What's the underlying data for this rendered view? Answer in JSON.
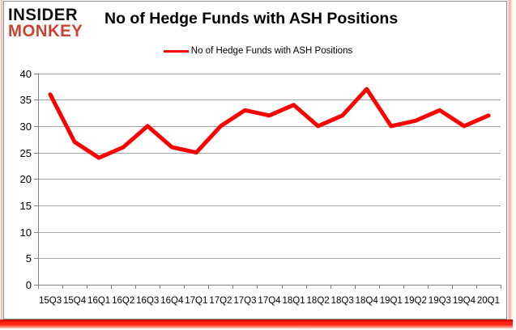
{
  "branding": {
    "line1": "INSIDER",
    "line2": "MONKEY"
  },
  "title": "No of Hedge Funds with ASH Positions",
  "legend": {
    "label": "No of Hedge Funds with ASH Positions"
  },
  "chart_data": {
    "type": "line",
    "title": "No of Hedge Funds with ASH Positions",
    "categories": [
      "15Q3",
      "15Q4",
      "16Q1",
      "16Q2",
      "16Q3",
      "16Q4",
      "17Q1",
      "17Q2",
      "17Q3",
      "17Q4",
      "18Q1",
      "18Q2",
      "18Q3",
      "18Q4",
      "19Q1",
      "19Q2",
      "19Q3",
      "19Q4",
      "20Q1"
    ],
    "series": [
      {
        "name": "No of Hedge Funds with ASH Positions",
        "color": "#ff0000",
        "values": [
          36,
          27,
          24,
          26,
          30,
          26,
          25,
          30,
          33,
          32,
          34,
          30,
          32,
          37,
          30,
          31,
          33,
          30,
          32
        ]
      }
    ],
    "ylim": [
      0,
      40
    ],
    "yticks": [
      0,
      5,
      10,
      15,
      20,
      25,
      30,
      35,
      40
    ],
    "grid": "horizontal",
    "legend_position": "top-center",
    "xlabel": "",
    "ylabel": ""
  },
  "colors": {
    "line": "#ff0000",
    "gridline": "#a6a6a6",
    "axis": "#808080",
    "text": "#000000",
    "logo_primary": "#121212",
    "logo_accent": "#cb4431",
    "frame_border": "#8e8e8e",
    "frame_glow_pink": "#f3aba5",
    "frame_glow_red": "#ff1f10"
  }
}
